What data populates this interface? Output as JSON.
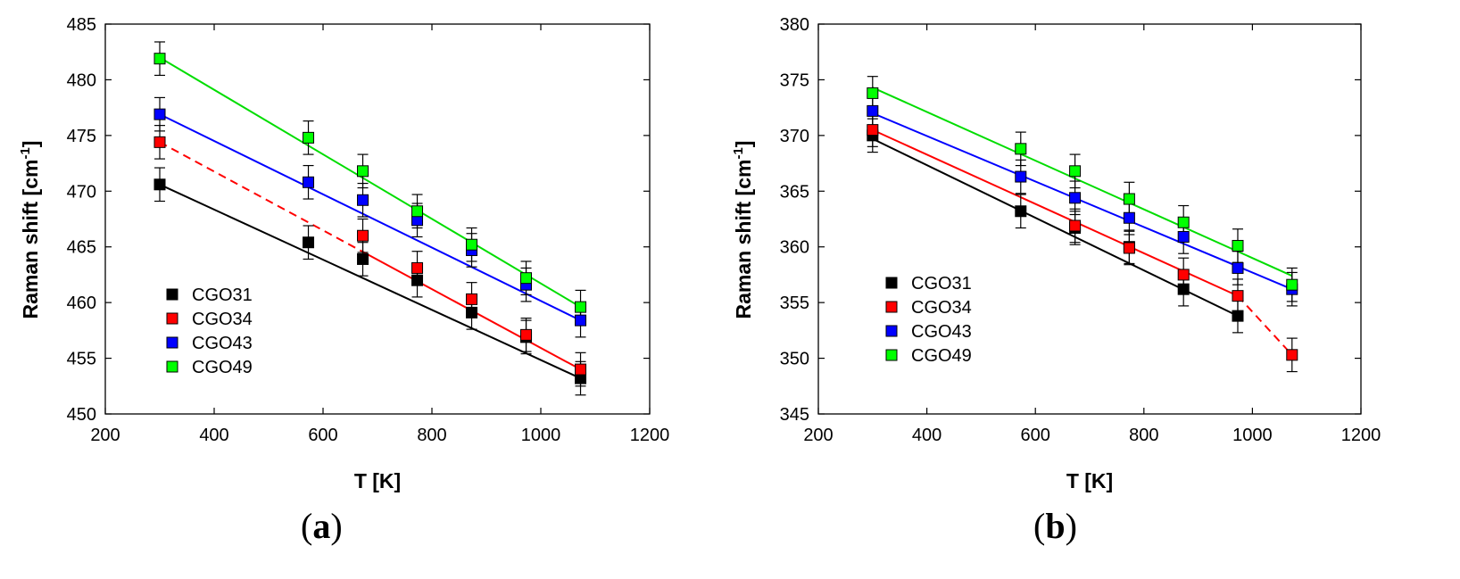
{
  "chart_data": [
    {
      "type": "scatter",
      "panel_label": "a",
      "xlabel": "T [K]",
      "ylabel": "Raman shift [cm",
      "ylabel_sup": "-1",
      "ylabel_end": "]",
      "xlim": [
        200,
        1200
      ],
      "ylim": [
        450,
        485
      ],
      "xticks": [
        200,
        400,
        600,
        800,
        1000,
        1200
      ],
      "yticks": [
        450,
        455,
        460,
        465,
        470,
        475,
        480,
        485
      ],
      "x": [
        300,
        573,
        673,
        773,
        873,
        973,
        1073
      ],
      "legend_position": "lower-left",
      "series": [
        {
          "name": "CGO31",
          "color": "#000000",
          "values": [
            470.6,
            465.4,
            463.9,
            462.0,
            459.1,
            456.9,
            453.2
          ],
          "fit": {
            "start": [
              300,
              470.6
            ],
            "end": [
              1073,
              453.2
            ],
            "dashed_to": null
          }
        },
        {
          "name": "CGO34",
          "color": "#ff0000",
          "values": [
            474.4,
            null,
            466.0,
            463.1,
            460.3,
            457.1,
            454.0
          ],
          "fit": {
            "start": [
              300,
              474.4
            ],
            "end": [
              1073,
              454.0
            ],
            "dashed_to": 673
          }
        },
        {
          "name": "CGO43",
          "color": "#0000ff",
          "values": [
            476.9,
            470.8,
            469.2,
            467.4,
            464.7,
            461.6,
            458.4
          ],
          "fit": {
            "start": [
              300,
              476.9
            ],
            "end": [
              1073,
              458.4
            ],
            "dashed_to": null
          }
        },
        {
          "name": "CGO49",
          "color": "#00ff00",
          "values": [
            481.9,
            474.8,
            471.8,
            468.2,
            465.2,
            462.2,
            459.6
          ],
          "fit": {
            "start": [
              300,
              482.0
            ],
            "end": [
              1073,
              459.6
            ],
            "dashed_to": null
          }
        }
      ]
    },
    {
      "type": "scatter",
      "panel_label": "b",
      "xlabel": "T [K]",
      "ylabel": "Raman shift [cm",
      "ylabel_sup": "-1",
      "ylabel_end": "]",
      "xlim": [
        200,
        1200
      ],
      "ylim": [
        345,
        380
      ],
      "xticks": [
        200,
        400,
        600,
        800,
        1000,
        1200
      ],
      "yticks": [
        345,
        350,
        355,
        360,
        365,
        370,
        375,
        380
      ],
      "x": [
        300,
        573,
        673,
        773,
        873,
        973,
        1073
      ],
      "legend_position": "lower-left",
      "series": [
        {
          "name": "CGO31",
          "color": "#000000",
          "values": [
            370.0,
            363.2,
            361.7,
            360.0,
            356.2,
            353.8,
            null
          ],
          "fit": {
            "start": [
              300,
              369.7
            ],
            "end": [
              973,
              353.8
            ],
            "dashed_to": null
          }
        },
        {
          "name": "CGO34",
          "color": "#ff0000",
          "values": [
            370.5,
            null,
            361.9,
            359.9,
            357.5,
            355.6,
            350.3
          ],
          "fit": {
            "start": [
              300,
              370.5
            ],
            "end": [
              973,
              355.6
            ],
            "dashed_from": 973,
            "dashed_end": [
              1073,
              350.3
            ]
          }
        },
        {
          "name": "CGO43",
          "color": "#0000ff",
          "values": [
            372.2,
            366.3,
            364.4,
            362.6,
            360.9,
            358.1,
            356.2
          ],
          "fit": {
            "start": [
              300,
              372.0
            ],
            "end": [
              1073,
              356.2
            ],
            "dashed_to": null
          }
        },
        {
          "name": "CGO49",
          "color": "#00ff00",
          "values": [
            373.8,
            368.8,
            366.8,
            364.3,
            362.2,
            360.1,
            356.6
          ],
          "fit": {
            "start": [
              300,
              374.3
            ],
            "end": [
              1073,
              357.4
            ],
            "dashed_to": null
          }
        }
      ]
    }
  ]
}
